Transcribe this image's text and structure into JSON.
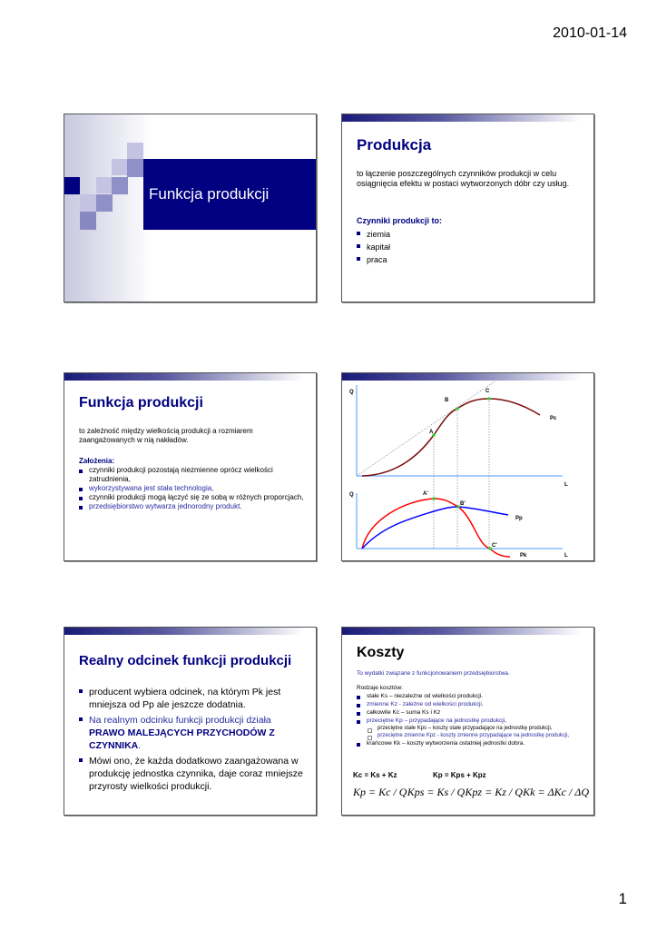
{
  "header": {
    "date": "2010-01-14"
  },
  "footer": {
    "page": "1"
  },
  "slide1": {
    "title": "Funkcja produkcji"
  },
  "slide2": {
    "title": "Produkcja",
    "definition": "to łączenie poszczególnych czynników produkcji w celu osiągnięcia efektu w postaci wytworzonych dóbr czy usług.",
    "subtitle": "Czynniki produkcji to:",
    "items": [
      "ziemia",
      "kapitał",
      "praca"
    ]
  },
  "slide3": {
    "title": "Funkcja produkcji",
    "definition": "to zależność między wielkością produkcji a rozmiarem zaangażowanych w nią nakładów.",
    "subtitle": "Założenia:",
    "items": [
      "czynniki produkcji pozostają niezmienne oprócz wielkości zatrudnienia,",
      "wykorzystywana jest stała technologia,",
      "czynniki produkcji mogą łączyć się ze sobą w różnych proporcjach,",
      "przedsiębiorstwo wytwarza jednorodny produkt."
    ]
  },
  "slide4": {
    "labels": {
      "q1": "Q",
      "q2": "Q",
      "l1": "L",
      "l2": "L",
      "a": "A",
      "b": "B",
      "c": "C",
      "a2": "A'",
      "b2": "B'",
      "c2": "C'",
      "pc": "Pc",
      "pp": "Pp",
      "pk": "Pk"
    },
    "colors": {
      "pc": "#7a1010",
      "pk": "#ff0000",
      "pp": "#0000ff",
      "axis": "#88bbff",
      "points": "#33cc33"
    }
  },
  "slide5": {
    "title": "Realny odcinek funkcji produkcji",
    "item1": "producent wybiera odcinek, na którym Pk jest mniejsza od Pp ale jeszcze dodatnia.",
    "item2a": "Na realnym odcinku funkcji produkcji działa",
    "item2b": "PRAWO MALEJĄCYCH PRZYCHODÓW Z CZYNNIKA",
    "item3": "Mówi ono, że każda dodatkowo zaangażowana w produkcję jednostka czynnika, daje coraz mniejsze przyrosty wielkości produkcji."
  },
  "slide6": {
    "title": "Koszty",
    "subtitle": "To wydatki związane z funkcjonowaniem przedsiębiorstwa.",
    "types_label": "Rodzaje kosztów:",
    "items": [
      "stałe Ks – niezależne od wielkości produkcji.",
      "zmienne Kz - zależne od wielkości produkcji.",
      "całkowite Kc – suma Ks i Kz",
      "przeciętne Kp – przypadające na jednostkę produkcji,",
      "krańcowe Kk – koszty wytworzenia ostatniej jednostki dobra."
    ],
    "sub": [
      "przeciętne stałe Kps – koszty stałe przypadające na jednostkę produkcji,",
      "przeciętne zmienne Kpz - koszty zmienne przypadające na jednostkę produkcji,"
    ],
    "eq1": "Kc = Ks + Kz",
    "eq2": "Kp = Kps + Kpz",
    "formulas": [
      "Kp = Kc / Q",
      "Kps = Ks / Q",
      "Kpz = Kz / Q",
      "Kk = ΔKc / ΔQ"
    ]
  }
}
